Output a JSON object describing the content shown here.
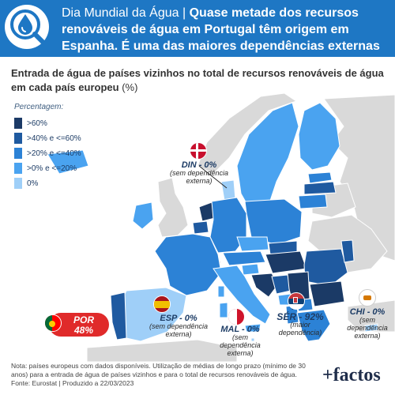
{
  "header": {
    "tag": "Dia Mundial da Água |",
    "headline": "Quase metade dos recursos renováveis de água em Portugal têm origem em Espanha. É uma das maiores dependências externas na Europa."
  },
  "subtitle": {
    "text": "Entrada de água de países vizinhos no total de recursos renováveis de água em cada país europeu",
    "unit": "(%)"
  },
  "legend": {
    "title": "Percentagem:",
    "items": [
      {
        "label": ">60%",
        "color": "#1b3a66"
      },
      {
        "label": ">40% e <=60%",
        "color": "#1f5aa0"
      },
      {
        "label": ">20% e <=40%",
        "color": "#2c82d6"
      },
      {
        "label": ">0% e <=20%",
        "color": "#4aa3f0"
      },
      {
        "label": "0%",
        "color": "#9fcff8"
      }
    ]
  },
  "callouts": {
    "din": {
      "name": "DIN - 0%",
      "note1": "(sem dependência",
      "note2": "externa)"
    },
    "esp": {
      "name": "ESP - 0%",
      "note1": "(sem dependência",
      "note2": "externa)"
    },
    "mal": {
      "name": "MAL - 0%",
      "note1": "(sem",
      "note2": "dependência",
      "note3": "externa)"
    },
    "ser": {
      "name": "SÉR - 92%",
      "note1": "(maior",
      "note2": "dependência)"
    },
    "chi": {
      "name": "CHI - 0%",
      "note1": "(sem",
      "note2": "dependência",
      "note3": "externa)"
    },
    "por": {
      "name": "POR",
      "value": "48%"
    }
  },
  "map_values": [
    {
      "country": "POR",
      "value_pct": 48
    },
    {
      "country": "SÉR",
      "value_pct": 92
    },
    {
      "country": "ESP",
      "value_pct": 0
    },
    {
      "country": "DIN",
      "value_pct": 0
    },
    {
      "country": "MAL",
      "value_pct": 0
    },
    {
      "country": "CHI",
      "value_pct": 0
    }
  ],
  "colors": {
    "header_bg": "#1e77c4",
    "no_data": "#d9d9d9",
    "highlight_red": "#e02a2a"
  },
  "footnote": "Nota: países europeus com dados disponíveis. Utilização de médias de longo prazo (mínimo de 30 anos) para a entrada de água de países vizinhos e para o total de recursos renováveis de água. Fonte: Eurostat | Produzido a 22/03/2023",
  "brand": "+factos"
}
